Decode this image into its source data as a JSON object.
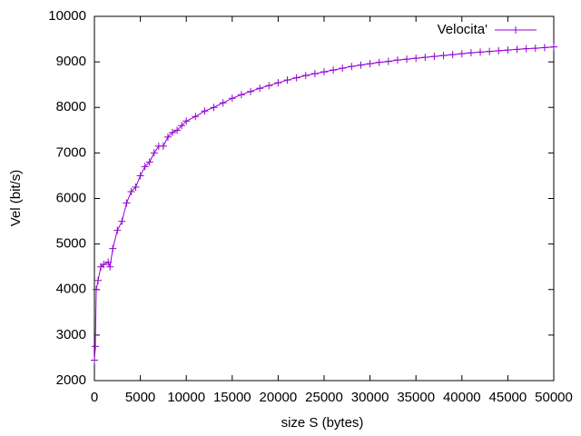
{
  "chart_data": {
    "type": "line",
    "xlabel": "size S (bytes)",
    "ylabel": "Vel (bit/s)",
    "x": [
      0,
      100,
      200,
      400,
      700,
      1000,
      1500,
      1700,
      2000,
      2500,
      3000,
      3500,
      4000,
      4500,
      5000,
      5500,
      6000,
      6500,
      7000,
      7500,
      8000,
      8500,
      9000,
      9500,
      10000,
      11000,
      12000,
      13000,
      14000,
      15000,
      16000,
      17000,
      18000,
      19000,
      20000,
      21000,
      22000,
      23000,
      24000,
      25000,
      26000,
      27000,
      28000,
      29000,
      30000,
      31000,
      32000,
      33000,
      34000,
      35000,
      36000,
      37000,
      38000,
      39000,
      40000,
      41000,
      42000,
      43000,
      44000,
      45000,
      46000,
      47000,
      48000,
      49000,
      50000
    ],
    "series": [
      {
        "name": "Velocita'",
        "color": "#9400d3",
        "values": [
          2450,
          2750,
          4000,
          4200,
          4500,
          4550,
          4600,
          4500,
          4900,
          5300,
          5500,
          5900,
          6150,
          6250,
          6500,
          6700,
          6800,
          7000,
          7150,
          7150,
          7350,
          7450,
          7500,
          7600,
          7700,
          7800,
          7920,
          8000,
          8100,
          8200,
          8280,
          8350,
          8420,
          8480,
          8540,
          8600,
          8650,
          8700,
          8740,
          8780,
          8820,
          8860,
          8900,
          8930,
          8960,
          8990,
          9010,
          9040,
          9060,
          9080,
          9100,
          9120,
          9140,
          9160,
          9180,
          9200,
          9215,
          9230,
          9245,
          9260,
          9275,
          9290,
          9300,
          9315,
          9330
        ]
      }
    ],
    "xlim": [
      0,
      50000
    ],
    "ylim": [
      2000,
      10000
    ],
    "xticks": [
      0,
      5000,
      10000,
      15000,
      20000,
      25000,
      30000,
      35000,
      40000,
      45000,
      50000
    ],
    "yticks": [
      2000,
      3000,
      4000,
      5000,
      6000,
      7000,
      8000,
      9000,
      10000
    ],
    "grid": false,
    "legend": "top-right"
  }
}
